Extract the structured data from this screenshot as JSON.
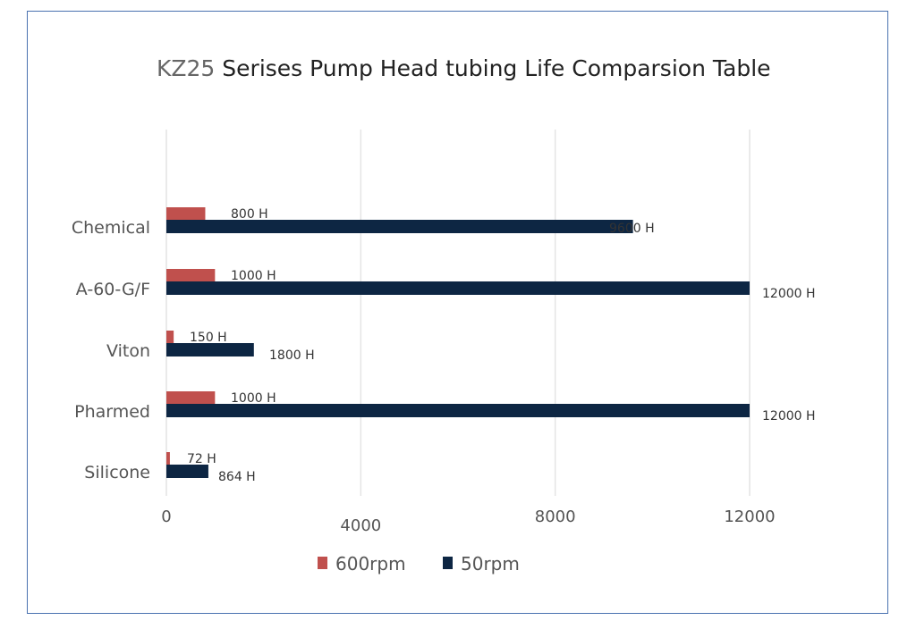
{
  "chart_data": {
    "type": "bar",
    "orientation": "horizontal",
    "title_prefix": "KZ25",
    "title": "Serises Pump Head tubing Life Comparsion Table",
    "categories": [
      "Chemical",
      "A-60-G/F",
      "Viton",
      "Pharmed",
      "Silicone"
    ],
    "series": [
      {
        "name": "600rpm",
        "color": "#c0504d",
        "values": [
          800,
          1000,
          150,
          1000,
          72
        ],
        "labels": [
          "800  H",
          "1000   H",
          "150  H",
          "1000   H",
          "72 H"
        ]
      },
      {
        "name": "50rpm",
        "color": "#0d2643",
        "values": [
          9600,
          12000,
          1800,
          12000,
          864
        ],
        "labels": [
          "9600 H",
          "12000   H",
          "1800   H",
          "12000   H",
          "864  H"
        ]
      }
    ],
    "xticks": [
      "0",
      "4000",
      "8000",
      "12000"
    ],
    "xlim": [
      0,
      12000
    ],
    "grid": true,
    "legend": "bottom"
  }
}
